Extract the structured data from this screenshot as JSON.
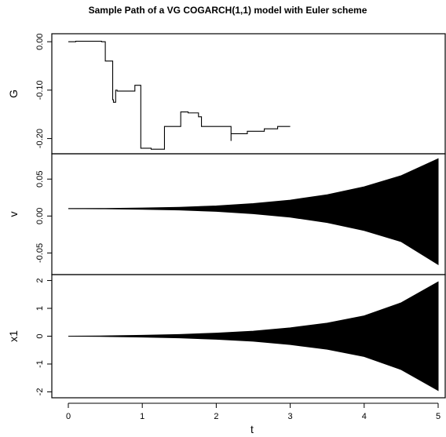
{
  "chart_data": {
    "type": "line",
    "title": "Sample Path of a VG COGARCH(1,1) model with Euler scheme",
    "xlabel": "t",
    "xlim": [
      0,
      5
    ],
    "x_ticks": [
      "0",
      "1",
      "2",
      "3",
      "4",
      "5"
    ],
    "panels": [
      {
        "ylabel": "G",
        "ylim": [
          -0.225,
          0.01
        ],
        "y_ticks": [
          "0.00",
          "-0.10",
          "-0.20"
        ],
        "y_tick_values": [
          0.0,
          -0.1,
          -0.2
        ],
        "style": "step",
        "x": [
          0.0,
          0.1,
          0.45,
          0.47,
          0.5,
          0.5,
          0.6,
          0.6,
          0.61,
          0.61,
          0.64,
          0.65,
          0.66,
          0.66,
          0.9,
          0.9,
          0.98,
          0.98,
          1.1,
          1.12,
          1.3,
          1.3,
          1.52,
          1.52,
          1.62,
          1.62,
          1.76,
          1.76,
          1.8,
          1.8,
          2.18,
          2.2,
          2.2,
          2.2,
          2.4,
          2.42,
          2.65,
          2.65,
          2.83,
          2.83,
          2.95,
          3.0
        ],
        "y": [
          0.0,
          0.001,
          0.0,
          0.0,
          0.0,
          -0.04,
          -0.04,
          -0.12,
          -0.12,
          -0.125,
          -0.1,
          -0.1,
          -0.102,
          -0.102,
          -0.095,
          -0.09,
          -0.09,
          -0.22,
          -0.22,
          -0.222,
          -0.222,
          -0.175,
          -0.175,
          -0.145,
          -0.145,
          -0.147,
          -0.15,
          -0.155,
          -0.16,
          -0.175,
          -0.175,
          -0.205,
          -0.19,
          -0.19,
          -0.19,
          -0.185,
          -0.185,
          -0.18,
          -0.18,
          -0.175,
          -0.175,
          -0.175
        ]
      },
      {
        "ylabel": "v",
        "ylim": [
          -0.075,
          0.08
        ],
        "y_ticks": [
          "-0.05",
          "0.00",
          "0.05"
        ],
        "y_tick_values": [
          -0.05,
          0.0,
          0.05
        ],
        "style": "envelope",
        "center": 0.01,
        "x": [
          0,
          0.5,
          1,
          1.5,
          2,
          2.5,
          3,
          3.5,
          4,
          4.5,
          5
        ],
        "upper": [
          0.01,
          0.0102,
          0.0108,
          0.0118,
          0.0137,
          0.0168,
          0.0215,
          0.0288,
          0.0395,
          0.0546,
          0.0775
        ],
        "lower": [
          0.01,
          0.0098,
          0.0092,
          0.0082,
          0.0063,
          0.0032,
          -0.0015,
          -0.0088,
          -0.0195,
          -0.0346,
          -0.0655
        ]
      },
      {
        "ylabel": "x1",
        "ylim": [
          -2.1,
          2.1
        ],
        "y_ticks": [
          "-2",
          "-1",
          "0",
          "1",
          "2"
        ],
        "y_tick_values": [
          -2,
          -1,
          0,
          1,
          2
        ],
        "style": "envelope",
        "center": 0.0,
        "x": [
          0,
          0.5,
          1,
          1.5,
          2,
          2.5,
          3,
          3.5,
          4,
          4.5,
          5
        ],
        "upper": [
          0.0,
          0.01,
          0.03,
          0.06,
          0.11,
          0.18,
          0.3,
          0.47,
          0.73,
          1.2,
          1.95
        ],
        "lower": [
          0.0,
          -0.01,
          -0.03,
          -0.06,
          -0.11,
          -0.18,
          -0.3,
          -0.47,
          -0.73,
          -1.2,
          -1.95
        ]
      }
    ]
  }
}
